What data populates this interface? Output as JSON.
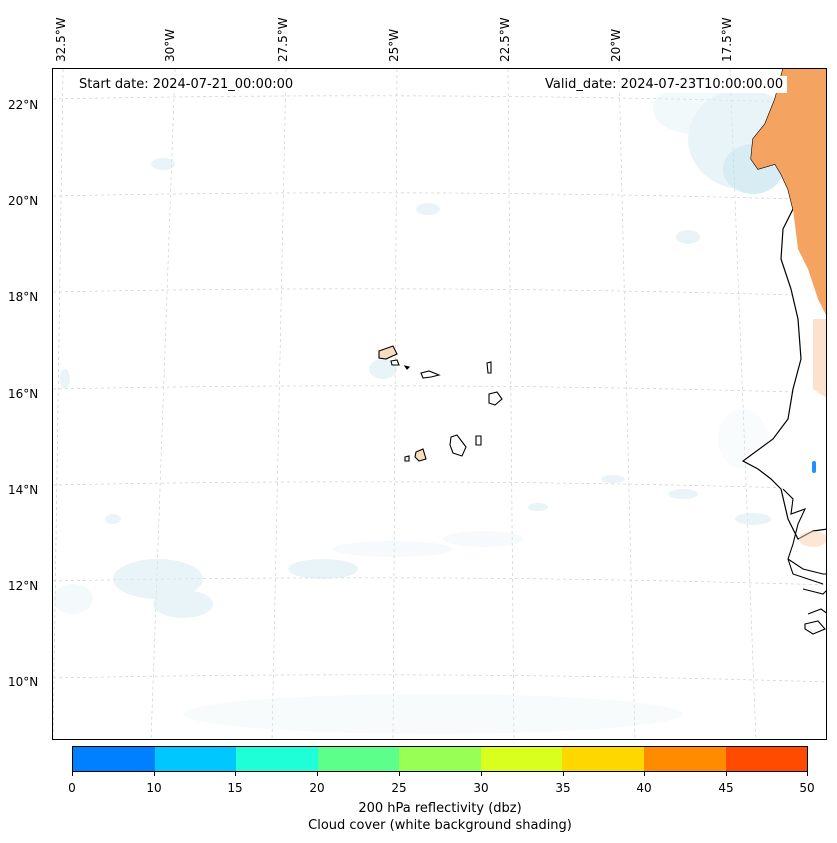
{
  "map": {
    "start_label": "Start date: 2024-07-21_00:00:00",
    "valid_label": "Valid_date: 2024-07-23T10:00:00.00",
    "lon_labels": [
      "32.5°W",
      "30°W",
      "27.5°W",
      "25°W",
      "22.5°W",
      "20°W",
      "17.5°W"
    ],
    "lat_labels": [
      "22°N",
      "20°N",
      "18°N",
      "16°N",
      "14°N",
      "12°N",
      "10°N"
    ]
  },
  "colorbar": {
    "title": "200 hPa reflectivity (dbz)",
    "subtitle": "Cloud cover (white background shading)",
    "ticks": [
      "0",
      "10",
      "15",
      "20",
      "25",
      "30",
      "35",
      "40",
      "45",
      "50"
    ],
    "colors": [
      "#0080ff",
      "#00c8ff",
      "#1effd8",
      "#5cff8a",
      "#98ff55",
      "#d8ff1e",
      "#ffd700",
      "#ff8c00",
      "#ff4b00"
    ]
  },
  "colors": {
    "land": "#f4a460",
    "cloud": "#d8ecf3",
    "coast": "#000000"
  }
}
